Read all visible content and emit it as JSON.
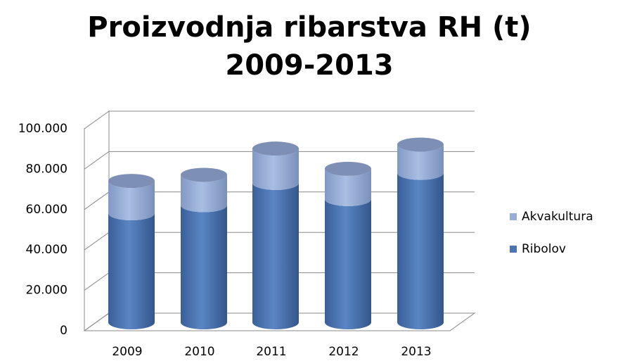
{
  "chart_data": {
    "type": "bar3d-stacked",
    "title": "Proizvodnja ribarstva RH (t) 2009-2013",
    "categories": [
      "2009",
      "2010",
      "2011",
      "2012",
      "2013"
    ],
    "series": [
      {
        "name": "Ribolov",
        "color": "#4a74b2",
        "values": [
          54000,
          58000,
          69000,
          61000,
          74000
        ]
      },
      {
        "name": "Akvakultura",
        "color": "#97add6",
        "values": [
          16000,
          15000,
          17000,
          15000,
          14000
        ]
      }
    ],
    "ylim": [
      0,
      100000
    ],
    "yticks": [
      0,
      {
        "value": 20000,
        "label": "20.000"
      },
      {
        "value": 40000,
        "label": "40.000"
      },
      {
        "value": 60000,
        "label": "60.000"
      },
      {
        "value": 80000,
        "label": "80.000"
      },
      {
        "value": 100000,
        "label": "100.000"
      }
    ],
    "grid": true,
    "legend": "right"
  }
}
